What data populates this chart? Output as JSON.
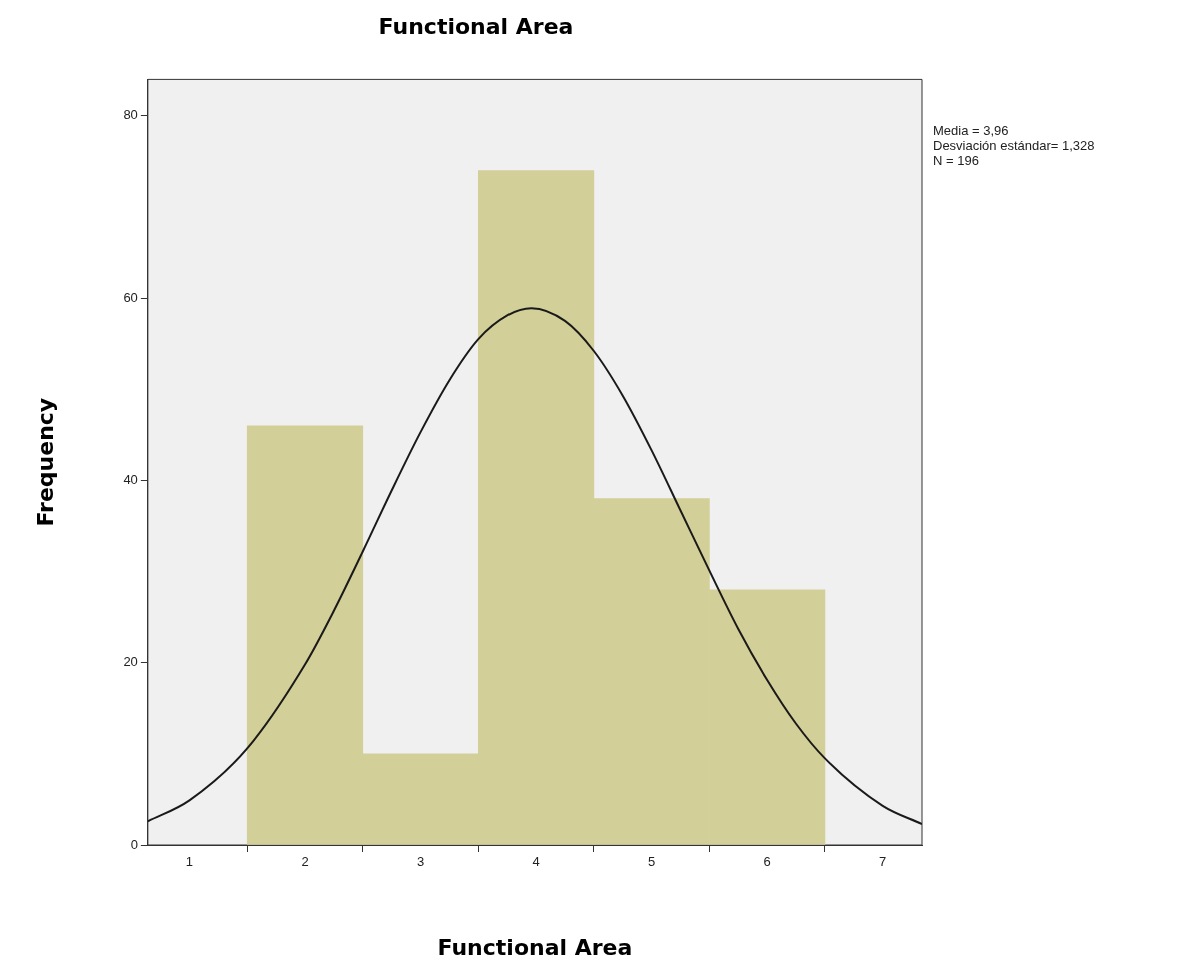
{
  "chart_data": {
    "type": "histogram",
    "title": "Functional Area",
    "xlabel": "Functional Area",
    "ylabel": "Frequency",
    "bins": [
      1.5,
      2.5,
      3.5,
      4.5,
      5.5,
      6.5
    ],
    "values": [
      46,
      10,
      74,
      38,
      28
    ],
    "color": "#d3cf98",
    "series": [
      {
        "type": "line",
        "color": "#1a1a1a",
        "x": [
          0.64,
          1,
          1.5,
          2,
          2.25,
          2.5,
          2.75,
          3,
          3.25,
          3.5,
          3.75,
          3.96,
          4.25,
          4.5,
          4.75,
          5,
          5.25,
          5.5,
          5.75,
          6,
          6.25,
          6.5,
          7,
          7.34
        ],
        "values": [
          2.6,
          4.9,
          10.6,
          19.8,
          25.7,
          32.2,
          38.9,
          45.3,
          51.0,
          55.5,
          58.1,
          58.9,
          57.5,
          54.2,
          49.3,
          43.3,
          36.7,
          30.1,
          23.7,
          18.1,
          13.3,
          9.5,
          4.3,
          2.3
        ]
      }
    ],
    "xlim": [
      0.64,
      7.34
    ],
    "xticks": [
      1,
      2,
      3,
      4,
      5,
      6,
      7
    ],
    "ylim": [
      0,
      84
    ],
    "yticks": [
      0,
      20,
      40,
      60,
      80
    ],
    "grid": false,
    "legend": false,
    "marker": "none",
    "annotations": [
      "Media = 3,96",
      "Desviación estándar= 1,328",
      "N = 196"
    ]
  }
}
